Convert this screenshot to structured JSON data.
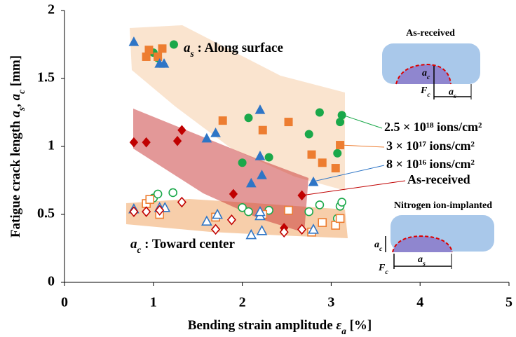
{
  "chart_data": {
    "type": "scatter",
    "xlabel": [
      {
        "text": "Bending strain amplitude ",
        "style": "normal"
      },
      {
        "text": "ε",
        "style": "italic"
      },
      {
        "text": "a",
        "style": "sub"
      },
      {
        "text": " [%]",
        "style": "normal"
      }
    ],
    "ylabel": [
      {
        "text": "Fatigue crack length ",
        "style": "normal"
      },
      {
        "text": "a",
        "style": "italic"
      },
      {
        "text": "s",
        "style": "sub"
      },
      {
        "text": ", ",
        "style": "normal"
      },
      {
        "text": "a",
        "style": "italic"
      },
      {
        "text": "c",
        "style": "sub"
      },
      {
        "text": " [mm]",
        "style": "normal"
      }
    ],
    "xlim": [
      0,
      5
    ],
    "xticks": [
      0,
      1,
      2,
      3,
      4,
      5
    ],
    "ylim": [
      0,
      2
    ],
    "yticks": [
      0,
      0.5,
      1,
      1.5,
      2
    ],
    "grid": false,
    "series": [
      {
        "name": "2.5 × 10¹⁸ ions/cm²",
        "color": "#1aa84a",
        "marker": "circle",
        "surface": {
          "x": [
            1.0,
            1.05,
            1.23,
            2.0,
            2.07,
            2.3,
            2.75,
            2.87,
            3.07,
            3.1,
            3.12
          ],
          "values": [
            1.69,
            1.65,
            1.75,
            0.88,
            1.21,
            0.92,
            1.09,
            1.25,
            0.95,
            1.18,
            1.23
          ]
        },
        "center": {
          "x": [
            1.0,
            1.05,
            1.22,
            2.0,
            2.07,
            2.3,
            2.75,
            2.87,
            3.07,
            3.1,
            3.12
          ],
          "values": [
            0.62,
            0.65,
            0.66,
            0.55,
            0.52,
            0.53,
            0.52,
            0.57,
            0.47,
            0.56,
            0.59
          ]
        }
      },
      {
        "name": "3 × 10¹⁷ ions/cm²",
        "color": "#ed7d31",
        "marker": "square",
        "surface": {
          "x": [
            0.92,
            0.95,
            1.05,
            1.1,
            1.78,
            2.23,
            2.52,
            2.78,
            2.9,
            3.05,
            3.1
          ],
          "values": [
            1.66,
            1.71,
            1.66,
            1.72,
            1.19,
            1.12,
            1.18,
            0.94,
            0.88,
            0.84,
            1.01
          ]
        },
        "center": {
          "x": [
            0.92,
            0.96,
            1.07,
            1.7,
            2.23,
            2.52,
            2.78,
            2.9,
            3.05,
            3.1
          ],
          "values": [
            0.58,
            0.61,
            0.5,
            0.48,
            0.5,
            0.53,
            0.37,
            0.44,
            0.42,
            0.47
          ]
        }
      },
      {
        "name": "8 × 10¹⁶ ions/cm²",
        "color": "#2e75c6",
        "marker": "triangle",
        "surface": {
          "x": [
            0.78,
            1.07,
            1.12,
            1.6,
            1.7,
            2.1,
            2.2,
            2.2,
            2.22,
            2.8
          ],
          "values": [
            1.77,
            1.61,
            1.61,
            1.06,
            1.1,
            0.73,
            1.27,
            0.93,
            0.79,
            0.74
          ]
        },
        "center": {
          "x": [
            0.78,
            1.07,
            1.13,
            1.6,
            1.72,
            2.1,
            2.2,
            2.2,
            2.22,
            2.8
          ],
          "values": [
            0.54,
            0.55,
            0.55,
            0.45,
            0.5,
            0.35,
            0.49,
            0.52,
            0.38,
            0.39
          ]
        }
      },
      {
        "name": "As-received",
        "color": "#c00000",
        "marker": "diamond",
        "surface": {
          "x": [
            0.78,
            0.92,
            1.27,
            1.32,
            1.9,
            2.47,
            2.67
          ],
          "values": [
            1.03,
            1.03,
            1.04,
            1.12,
            0.65,
            0.4,
            0.64
          ]
        },
        "center": {
          "x": [
            0.78,
            0.92,
            1.07,
            1.32,
            1.7,
            1.88,
            2.47,
            2.67
          ],
          "values": [
            0.52,
            0.52,
            0.53,
            0.59,
            0.39,
            0.46,
            0.37,
            0.39
          ]
        }
      }
    ],
    "annotations": [
      [
        {
          "text": "a",
          "style": "italic"
        },
        {
          "text": "s",
          "style": "sub"
        },
        {
          "text": " : Along surface",
          "style": "normal"
        }
      ],
      [
        {
          "text": "a",
          "style": "italic"
        },
        {
          "text": "c",
          "style": "sub"
        },
        {
          "text": " : Toward center",
          "style": "normal"
        }
      ]
    ],
    "insets": [
      {
        "title": "As-received",
        "depth": [
          {
            "text": "a",
            "style": "italic"
          },
          {
            "text": "c",
            "style": "sub"
          }
        ],
        "origin": [
          {
            "text": "F",
            "style": "italic"
          },
          {
            "text": "c",
            "style": "sub"
          }
        ],
        "length": [
          {
            "text": "a",
            "style": "italic"
          },
          {
            "text": "s",
            "style": "sub"
          }
        ]
      },
      {
        "title": "Nitrogen ion-implanted",
        "depth": [
          {
            "text": "a",
            "style": "italic"
          },
          {
            "text": "c",
            "style": "sub"
          }
        ],
        "origin": [
          {
            "text": "F",
            "style": "italic"
          },
          {
            "text": "c",
            "style": "sub"
          }
        ],
        "length": [
          {
            "text": "a",
            "style": "italic"
          },
          {
            "text": "s",
            "style": "sub"
          }
        ]
      }
    ]
  }
}
